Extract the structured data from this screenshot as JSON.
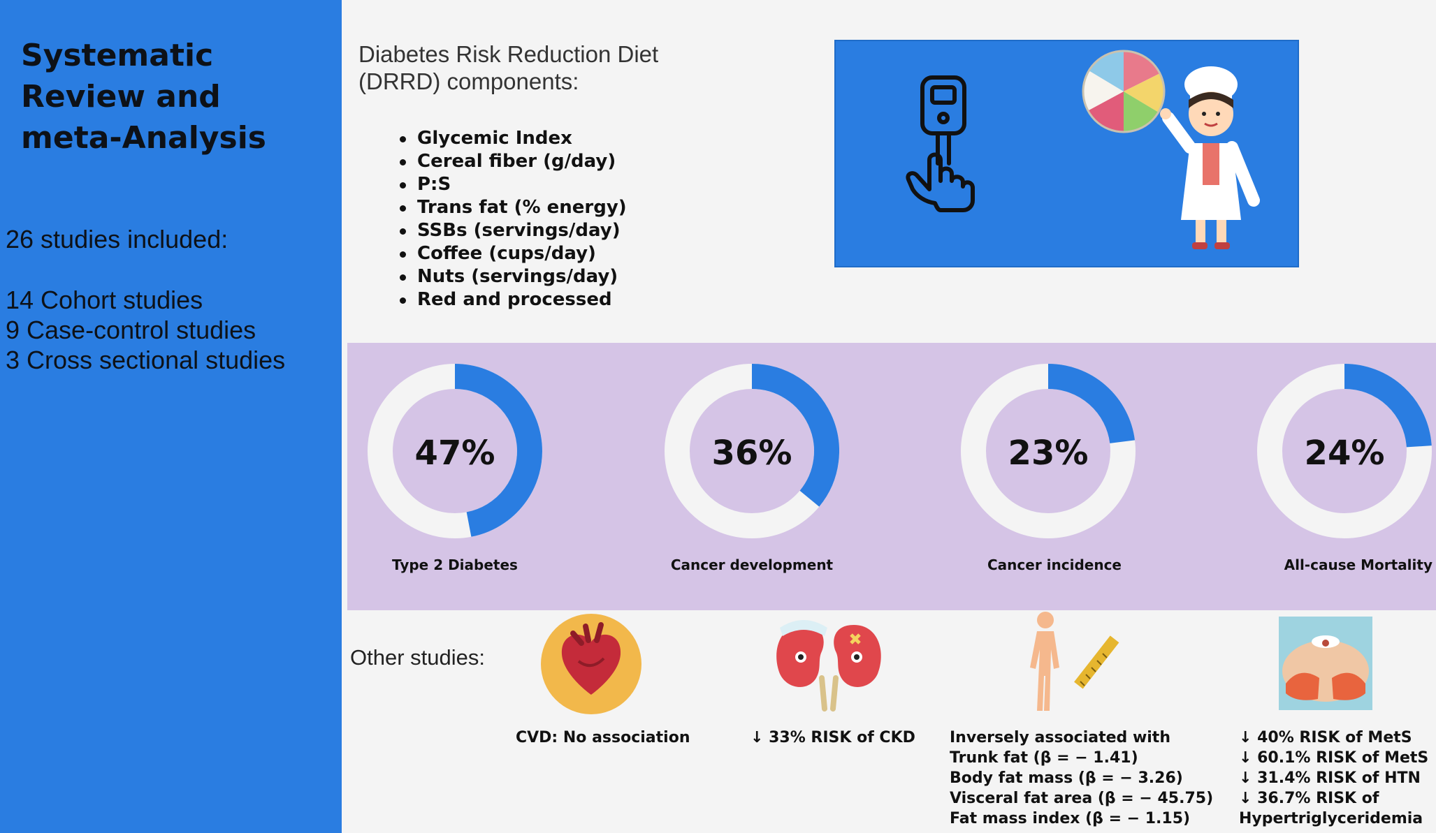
{
  "sidebar": {
    "title": "Systematic Review and meta-Analysis",
    "studies_count": "26 studies included:",
    "study_types": [
      "14 Cohort studies",
      "9 Case-control studies",
      "3 Cross sectional studies"
    ]
  },
  "drrd": {
    "heading": "Diabetes Risk Reduction Diet (DRRD) components:",
    "components": [
      "Glycemic Index",
      "Cereal fiber (g/day)",
      "P:S",
      "Trans fat (% energy)",
      "SSBs (servings/day)",
      "Coffee (cups/day)",
      "Nuts (servings/day)",
      "Red and processed"
    ]
  },
  "outcomes": [
    {
      "value": "47%",
      "percent": 47,
      "label": "Type 2 Diabetes"
    },
    {
      "value": "36%",
      "percent": 36,
      "label": "Cancer development"
    },
    {
      "value": "23%",
      "percent": 23,
      "label": "Cancer incidence"
    },
    {
      "value": "24%",
      "percent": 24,
      "label": "All-cause Mortality"
    }
  ],
  "other": {
    "heading": "Other studies:",
    "cvd": "CVD: No association",
    "ckd": "↓ 33% RISK of CKD",
    "body_comp": [
      "Inversely associated with",
      "Trunk fat (β = − 1.41)",
      "Body fat mass (β = − 3.26)",
      "Visceral fat area (β = − 45.75)",
      "Fat mass index (β = − 1.15)"
    ],
    "mets": [
      "↓ 40% RISK of MetS",
      "↓ 60.1% RISK of MetS",
      "↓ 31.4% RISK of HTN",
      "↓ 36.7% RISK of",
      "Hypertriglyceridemia"
    ]
  },
  "colors": {
    "primary_blue": "#2a7de1",
    "band_purple": "#d5c4e6",
    "donut_track": "#f4f4f4",
    "background": "#f4f4f4"
  }
}
